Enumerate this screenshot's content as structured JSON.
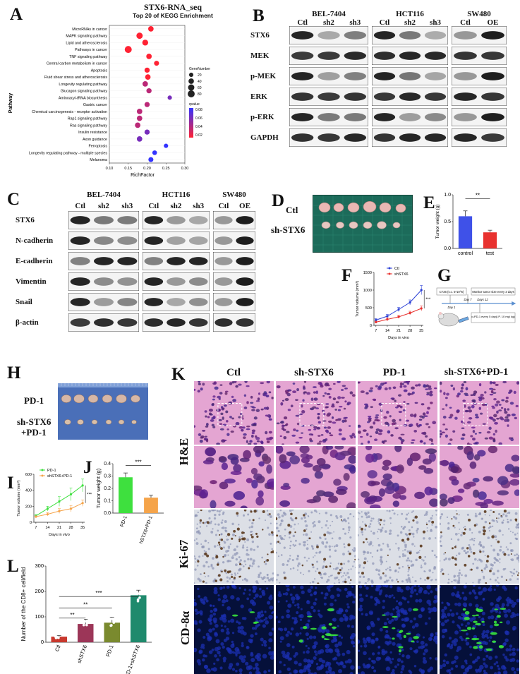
{
  "figure": {
    "panel_letters": [
      "A",
      "B",
      "C",
      "D",
      "E",
      "F",
      "G",
      "H",
      "I",
      "J",
      "K",
      "L"
    ]
  },
  "panelA": {
    "title": "STX6-RNA_seq",
    "subtitle": "Top 20 of KEGG Enrichment",
    "ylabel": "Pathway",
    "xlabel": "RichFactor",
    "legend_size_title": "GeneNumber",
    "legend_size_values": [
      "20",
      "40",
      "60",
      "80"
    ],
    "legend_color_title": "qvalue",
    "legend_color_values": [
      "0.08",
      "0.06",
      "0.04",
      "0.02"
    ]
  },
  "panelB": {
    "groups": [
      "BEL-7404",
      "HCT116",
      "SW480"
    ],
    "lanes": [
      [
        "Ctl",
        "sh2",
        "sh3"
      ],
      [
        "Ctl",
        "sh2",
        "sh3"
      ],
      [
        "Ctl",
        "OE"
      ]
    ],
    "rows": [
      "STX6",
      "MEK",
      "p-MEK",
      "ERK",
      "p-ERK",
      "GAPDH"
    ]
  },
  "panelC": {
    "groups": [
      "BEL-7404",
      "HCT116",
      "SW480"
    ],
    "lanes": [
      [
        "Ctl",
        "sh2",
        "sh3"
      ],
      [
        "Ctl",
        "sh2",
        "sh3"
      ],
      [
        "Ctl",
        "OE"
      ]
    ],
    "rows": [
      "STX6",
      "N-cadherin",
      "E-cadherin",
      "Vimentin",
      "Snail",
      "β-actin"
    ]
  },
  "panelD": {
    "labels": [
      "Ctl",
      "sh-STX6"
    ]
  },
  "panelG": {
    "boxes": [
      "CT26 (s.c. 5*10^5)",
      "Monitor tumor size every 3 days",
      "α-PD-1 every 5 day(I.P. 10 mg/ kg)"
    ],
    "days": [
      "Day 1",
      "Day 7",
      "Days 12"
    ]
  },
  "panelH": {
    "labels": [
      "PD-1",
      "sh-STX6",
      "+PD-1"
    ]
  },
  "panelK": {
    "columns": [
      "Ctl",
      "sh-STX6",
      "PD-1",
      "sh-STX6+PD-1"
    ],
    "rows": [
      "H&E",
      "Ki-67",
      "CD-8α"
    ]
  },
  "chart_data": [
    {
      "id": "A",
      "type": "scatter",
      "title": "STX6-RNA_seq",
      "subtitle": "Top 20 of KEGG Enrichment",
      "xlabel": "RichFactor",
      "ylabel": "Pathway",
      "xlim": [
        0.1,
        0.3
      ],
      "xticks": [
        "0.10",
        "0.15",
        "0.20",
        "0.25",
        "0.30"
      ],
      "categories": [
        "MicroRNAs in cancer",
        "MAPK signaling pathway",
        "Lipid and atherosclerosis",
        "Pathways in cancer",
        "TNF signaling pathway",
        "Central carbon metabolism in cancer",
        "Apoptosis",
        "Fluid shear stress and atherosclerosis",
        "Longevity regulating pathway",
        "Glucagon signaling pathway",
        "Aminoacyl-tRNA biosynthesis",
        "Gastric cancer",
        "Chemical carcinogenesis - receptor activation",
        "Rap1 signaling pathway",
        "Ras signaling pathway",
        "Insulin resistance",
        "Axon guidance",
        "Ferroptosis",
        "Longevity regulating pathway - multiple species",
        "Melanoma"
      ],
      "x": [
        0.21,
        0.18,
        0.195,
        0.15,
        0.205,
        0.225,
        0.2,
        0.202,
        0.195,
        0.205,
        0.26,
        0.2,
        0.18,
        0.18,
        0.175,
        0.2,
        0.18,
        0.25,
        0.22,
        0.21
      ],
      "size": [
        40,
        60,
        50,
        80,
        40,
        30,
        35,
        40,
        40,
        35,
        20,
        35,
        40,
        40,
        40,
        35,
        40,
        20,
        25,
        30
      ],
      "qvalue": [
        0.02,
        0.02,
        0.02,
        0.02,
        0.02,
        0.02,
        0.02,
        0.02,
        0.04,
        0.04,
        0.06,
        0.04,
        0.04,
        0.04,
        0.04,
        0.06,
        0.06,
        0.08,
        0.08,
        0.08
      ]
    },
    {
      "id": "E",
      "type": "bar",
      "categories": [
        "control",
        "test"
      ],
      "values": [
        0.6,
        0.3
      ],
      "errors": [
        0.1,
        0.04
      ],
      "ylabel": "Tumor weight (g)",
      "ylim": [
        0,
        1.0
      ],
      "yticks": [
        "0.0",
        "0.5",
        "1.0"
      ],
      "significance": "**",
      "colors": [
        "#3f51e8",
        "#e8322f"
      ]
    },
    {
      "id": "F",
      "type": "line",
      "x": [
        7,
        14,
        21,
        28,
        35
      ],
      "xlabel": "Days in vivo",
      "ylabel": "Tumor volume (mm³)",
      "ylim": [
        0,
        1500
      ],
      "yticks": [
        "0",
        "500",
        "1000",
        "1500"
      ],
      "series": [
        {
          "name": "Ctl",
          "values": [
            150,
            260,
            450,
            650,
            1000
          ],
          "errors": [
            40,
            50,
            60,
            70,
            130
          ],
          "color": "#2a3fd6"
        },
        {
          "name": "shSTX6",
          "values": [
            90,
            170,
            240,
            350,
            480
          ],
          "errors": [
            30,
            40,
            40,
            50,
            70
          ],
          "color": "#e8322f"
        }
      ],
      "significance": "***"
    },
    {
      "id": "I",
      "type": "line",
      "x": [
        7,
        14,
        21,
        28,
        35
      ],
      "xlabel": "Days in vivo",
      "ylabel": "Tumor volume (mm³)",
      "ylim": [
        0,
        600
      ],
      "yticks": [
        "0",
        "200",
        "400",
        "600"
      ],
      "series": [
        {
          "name": "PD-1",
          "values": [
            80,
            170,
            260,
            350,
            460
          ],
          "errors": [
            15,
            30,
            60,
            80,
            80
          ],
          "color": "#3ee03e"
        },
        {
          "name": "shSTX6+PD-1",
          "values": [
            70,
            100,
            140,
            170,
            240
          ],
          "errors": [
            10,
            20,
            30,
            40,
            40
          ],
          "color": "#f5a44a"
        }
      ],
      "significance": "***"
    },
    {
      "id": "J",
      "type": "bar",
      "categories": [
        "PD-1",
        "shSTX6+PD-1"
      ],
      "values": [
        0.29,
        0.125
      ],
      "errors": [
        0.035,
        0.02
      ],
      "ylabel": "Tumor weight (g)",
      "ylim": [
        0,
        0.4
      ],
      "yticks": [
        "0.0",
        "0.1",
        "0.2",
        "0.3",
        "0.4"
      ],
      "significance": "***",
      "colors": [
        "#3ee03e",
        "#f5a44a"
      ]
    },
    {
      "id": "L",
      "type": "bar",
      "categories": [
        "Ctl",
        "shSTX6",
        "PD-1",
        "PD-1+shSTX6"
      ],
      "values": [
        22,
        72,
        77,
        185
      ],
      "errors": [
        5,
        18,
        22,
        20
      ],
      "ylabel": "Number of the CD8+ cell/field",
      "ylim": [
        0,
        300
      ],
      "yticks": [
        "0",
        "100",
        "200",
        "300"
      ],
      "colors": [
        "#c8392e",
        "#9c3658",
        "#7a8a2e",
        "#1f8a6d"
      ],
      "significance": [
        "**",
        "**",
        "***"
      ]
    }
  ]
}
